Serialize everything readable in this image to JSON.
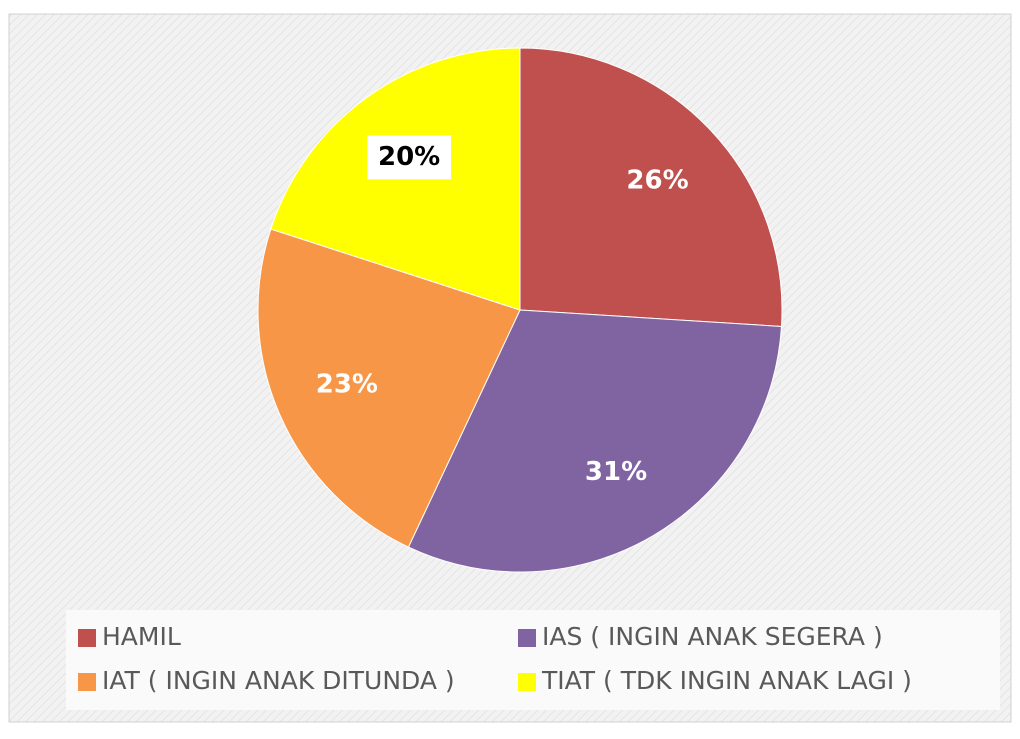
{
  "chart_data": {
    "type": "pie",
    "categories": [
      "HAMIL",
      "IAS ( INGIN  ANAK SEGERA )",
      "IAT ( INGIN  ANAK DITUNDA )",
      "TIAT ( TDK INGIN ANAK LAGI )"
    ],
    "values": [
      26,
      31,
      23,
      20
    ],
    "value_labels": [
      "26%",
      "31%",
      "23%",
      "20%"
    ],
    "colors": [
      "#c0504d",
      "#8064a2",
      "#f79646",
      "#ffff00"
    ],
    "legend": "bottom"
  }
}
